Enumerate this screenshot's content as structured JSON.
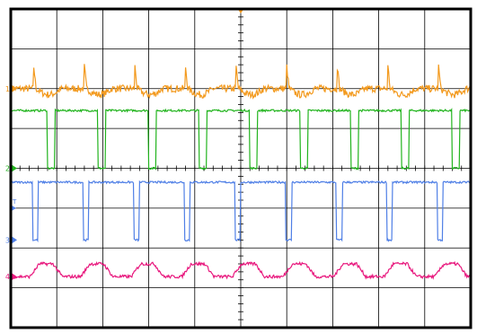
{
  "chart_data": {
    "type": "line",
    "title": "",
    "xlabel": "",
    "ylabel": "",
    "grid": true,
    "divisions": {
      "x": 10,
      "y": 8
    },
    "xlim": [
      0,
      10
    ],
    "ylim": [
      -4,
      4
    ],
    "trigger_marker": "T",
    "colors": {
      "frame": "#000000",
      "grid": "#000000",
      "ch1": "#f39a1e",
      "ch2": "#22b41e",
      "ch3": "#4f7fe6",
      "ch4": "#e8177d"
    },
    "series": [
      {
        "channel": 1,
        "marker": "1",
        "color": "#f39a1e",
        "offset_div": 2.0,
        "kind": "ripple",
        "high_div": 0.0,
        "low_div": 0.0,
        "amplitude_div": 0.15,
        "spike_x": [
          0.5,
          1.6,
          2.7,
          3.8,
          4.9,
          6.0,
          7.1,
          8.2,
          9.3
        ]
      },
      {
        "channel": 2,
        "marker": "2",
        "color": "#22b41e",
        "offset_div": 0.0,
        "kind": "pulse",
        "high_div": 1.45,
        "low_div": 0.0,
        "period_div": 1.1,
        "fall_x": [
          0.8,
          1.9,
          3.0,
          4.1,
          5.2,
          6.3,
          7.4,
          8.5,
          9.6
        ],
        "pulse_width_div": 0.16
      },
      {
        "channel": 3,
        "marker": "3",
        "color": "#4f7fe6",
        "offset_div": -1.8,
        "kind": "pulse",
        "high_div": 1.45,
        "low_div": 0.0,
        "period_div": 1.1,
        "fall_x": [
          0.48,
          1.58,
          2.68,
          3.78,
          4.88,
          5.98,
          7.08,
          8.18,
          9.28
        ],
        "pulse_width_div": 0.12
      },
      {
        "channel": 4,
        "marker": "4",
        "color": "#e8177d",
        "offset_div": -2.72,
        "kind": "trapezoid",
        "high_div": 0.32,
        "low_div": 0.0,
        "period_div": 1.1,
        "rise_x": [
          0.42,
          1.52,
          2.62,
          3.72,
          4.82,
          5.92,
          7.02,
          8.12,
          9.22
        ]
      }
    ]
  }
}
